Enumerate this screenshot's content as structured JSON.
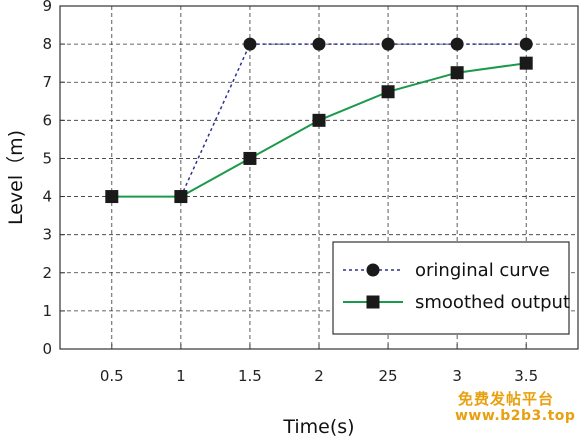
{
  "chart_data": {
    "type": "line",
    "categories": [
      "0.5",
      "1",
      "1.5",
      "2",
      "25",
      "3",
      "3.5"
    ],
    "xlabel": "Time(s)",
    "ylabel": "Level（m)",
    "ylim": [
      0,
      9
    ],
    "yticks": [
      "0",
      "1",
      "2",
      "3",
      "4",
      "5",
      "6",
      "7",
      "8",
      "9"
    ],
    "grid": true,
    "legend_position": "bottom-right",
    "series": [
      {
        "name": "oringinal curve",
        "values": [
          null,
          4,
          8,
          8,
          8,
          8,
          8
        ],
        "color": "#2e3192",
        "line_style": "dashed",
        "marker": "circle"
      },
      {
        "name": "smoothed output",
        "values": [
          4,
          4,
          5,
          6,
          6.75,
          7.25,
          7.5
        ],
        "color": "#1a9a4a",
        "line_style": "solid",
        "marker": "square"
      }
    ]
  },
  "watermark": {
    "line1": "免费发帖平台",
    "line2": "www.b2b3.top"
  }
}
